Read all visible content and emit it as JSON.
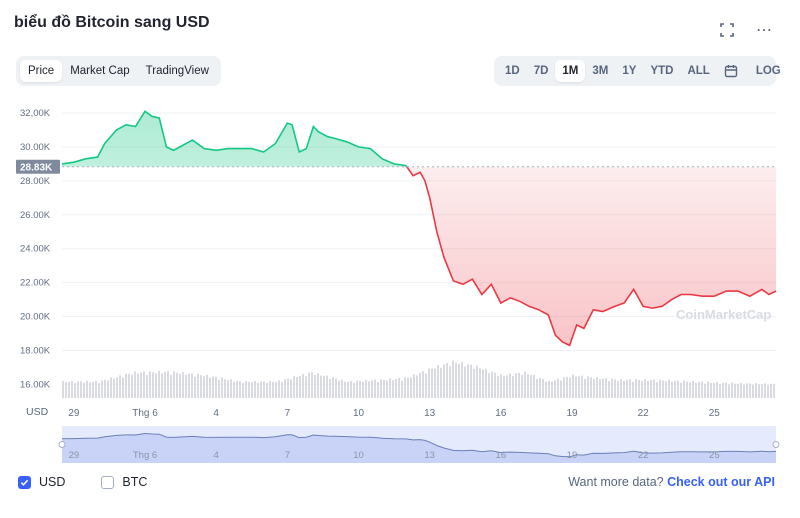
{
  "header": {
    "title": "biểu đồ Bitcoin sang USD"
  },
  "tabs": [
    {
      "label": "Price",
      "active": true
    },
    {
      "label": "Market Cap",
      "active": false
    },
    {
      "label": "TradingView",
      "active": false
    }
  ],
  "ranges": [
    {
      "label": "1D",
      "active": false
    },
    {
      "label": "7D",
      "active": false
    },
    {
      "label": "1M",
      "active": true
    },
    {
      "label": "3M",
      "active": false
    },
    {
      "label": "1Y",
      "active": false
    },
    {
      "label": "YTD",
      "active": false
    },
    {
      "label": "ALL",
      "active": false
    }
  ],
  "log_label": "LOG",
  "legend": {
    "usd_label": "USD",
    "btc_label": "BTC"
  },
  "footer": {
    "prompt": "Want more data?",
    "link": "Check out our API"
  },
  "watermark": "CoinMarketCap",
  "colors": {
    "up": "#16c784",
    "down": "#ea3943",
    "accent": "#3861fb",
    "volume": "#d9dbe1"
  },
  "chart_data": {
    "type": "area",
    "title": "biểu đồ Bitcoin sang USD",
    "ylabel": "USD",
    "ylim": [
      15200,
      33000
    ],
    "y_ticks": [
      {
        "value": 32000,
        "label": "32,00K"
      },
      {
        "value": 30000,
        "label": "30.00K"
      },
      {
        "value": 28000,
        "label": "28.00K"
      },
      {
        "value": 26000,
        "label": "26.00K"
      },
      {
        "value": 24000,
        "label": "24.00K"
      },
      {
        "value": 22000,
        "label": "22.00K"
      },
      {
        "value": 20000,
        "label": "20.00K"
      },
      {
        "value": 18000,
        "label": "18.00K"
      },
      {
        "value": 16000,
        "label": "16.00K"
      }
    ],
    "reference": {
      "value": 28830,
      "label": "28.83K"
    },
    "x_ticks": [
      {
        "day": 29,
        "label": "29"
      },
      {
        "day": 32,
        "label": "Thg 6"
      },
      {
        "day": 35,
        "label": "4"
      },
      {
        "day": 38,
        "label": "7"
      },
      {
        "day": 41,
        "label": "10"
      },
      {
        "day": 44,
        "label": "13"
      },
      {
        "day": 47,
        "label": "16"
      },
      {
        "day": 50,
        "label": "19"
      },
      {
        "day": 53,
        "label": "22"
      },
      {
        "day": 56,
        "label": "25"
      }
    ],
    "x_range": [
      28.5,
      58.6
    ],
    "series": [
      {
        "name": "BTC price (USD)",
        "x": [
          28.5,
          29.0,
          29.5,
          30.0,
          30.3,
          30.8,
          31.2,
          31.6,
          32.0,
          32.3,
          32.6,
          32.9,
          33.2,
          33.6,
          34.0,
          34.5,
          35.0,
          35.5,
          36.0,
          36.5,
          37.0,
          37.5,
          38.0,
          38.2,
          38.5,
          38.8,
          39.1,
          39.3,
          39.7,
          40.0,
          40.5,
          41.0,
          41.5,
          42.0,
          42.5,
          43.0,
          43.3,
          43.6,
          43.8,
          44.0,
          44.3,
          44.6,
          45.0,
          45.4,
          45.8,
          46.2,
          46.6,
          47.0,
          47.4,
          47.8,
          48.2,
          48.6,
          49.0,
          49.3,
          49.6,
          49.9,
          50.2,
          50.5,
          50.9,
          51.3,
          51.8,
          52.2,
          52.6,
          53.0,
          53.4,
          53.8,
          54.2,
          54.6,
          55.0,
          55.5,
          56.0,
          56.5,
          57.0,
          57.5,
          58.0,
          58.3,
          58.6
        ],
        "values": [
          29000,
          29100,
          29300,
          29400,
          30200,
          31000,
          31300,
          31200,
          32100,
          31800,
          31700,
          30000,
          29800,
          30100,
          30400,
          29900,
          29800,
          29900,
          29900,
          29900,
          29700,
          30200,
          31400,
          31300,
          29700,
          29900,
          31200,
          30900,
          30600,
          30500,
          30300,
          30000,
          29900,
          29300,
          29000,
          28900,
          28300,
          28500,
          28000,
          27000,
          25000,
          23500,
          22100,
          21900,
          22200,
          21300,
          21900,
          20800,
          21100,
          20900,
          20600,
          20400,
          20100,
          18900,
          18500,
          18300,
          19500,
          19300,
          20400,
          20300,
          20600,
          20800,
          21600,
          20600,
          20500,
          20600,
          21000,
          21300,
          21300,
          21200,
          21200,
          21500,
          21500,
          21200,
          21600,
          21300,
          21500
        ]
      },
      {
        "name": "Volume (relative)",
        "x": [
          28.5,
          30.0,
          31.5,
          33.0,
          34.5,
          36.0,
          37.5,
          39.0,
          40.5,
          42.0,
          43.0,
          44.0,
          45.0,
          46.0,
          47.0,
          48.0,
          49.0,
          50.0,
          51.0,
          52.0,
          53.0,
          54.0,
          55.0,
          56.0,
          57.0,
          58.6
        ],
        "values": [
          0.45,
          0.45,
          0.7,
          0.72,
          0.62,
          0.45,
          0.45,
          0.7,
          0.45,
          0.5,
          0.55,
          0.8,
          1.0,
          0.85,
          0.62,
          0.7,
          0.45,
          0.62,
          0.55,
          0.5,
          0.5,
          0.48,
          0.45,
          0.42,
          0.4,
          0.38
        ]
      }
    ]
  }
}
